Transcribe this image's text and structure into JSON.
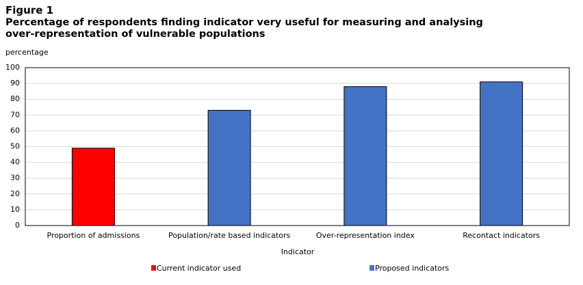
{
  "chart_data": {
    "type": "bar",
    "figure_label": "Figure 1",
    "title": "Percentage of respondents finding indicator  very useful for measuring and analysing over-representation of vulnerable populations",
    "y_label": "percentage",
    "x_label": "Indicator",
    "categories": [
      "Proportion of admissions",
      "Population/rate based indicators",
      "Over-representation index",
      "Recontact indicators"
    ],
    "series": [
      {
        "name": "Current indicator used",
        "color": "#ff0000",
        "values": [
          49,
          null,
          null,
          null
        ]
      },
      {
        "name": "Proposed indicators",
        "color": "#4472c4",
        "values": [
          null,
          73,
          88,
          91
        ]
      }
    ],
    "ylim": [
      0,
      100
    ],
    "yticks": [
      0,
      10,
      20,
      30,
      40,
      50,
      60,
      70,
      80,
      90,
      100
    ],
    "grid": true
  }
}
